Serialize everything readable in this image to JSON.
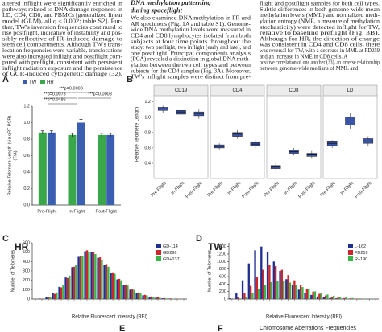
{
  "text": {
    "column_1": [
      "altered inflight were significantly enriched in",
      "pathways related to DNA damage responses in",
      "LD, CD4, CD8, and PBMCs [generalized linear",
      "model (GLM), all q ≤ 0.002; table S2]. Fur-",
      "ther, TW's inversion frequencies continued to",
      "rise postflight, indicative of instability and pos-",
      "sibly reflective of IR-induced damage to",
      "stem cell compartments. Although TW's trans-",
      "location frequencies were variable, translocations",
      "were also increased inflight and postflight com-",
      "pared with preflight, consistent with persistent",
      "inflight radiation exposure and the persistence",
      "of GCR-induced cytogenetic damage (32)."
    ],
    "column_2_heading": [
      "DNA methylation patterning",
      "during spaceflight"
    ],
    "column_2": [
      "We also examined DNA methylation in FR and",
      "AR specimens (Fig. 1A and table S1). Genome-",
      "wide DNA methylation levels were measured in",
      "CD4 and CD8 lymphocytes isolated from both",
      "subjects at four time points throughout the",
      "study: two preflight, two inflight (early and late), and",
      "one postflight. Principal components analysis",
      "(PCA) revealed a distinction in global DNA meth-",
      "ylation between the two cell types and between",
      "subjects for the CD4 samples (Fig. 3A). Moreover,",
      "TW's inflight samples were distinct from pre-"
    ],
    "column_3": [
      "flight and postflight samples for both cell types.",
      "Subtle differences in both genome-wide mean",
      "methylation levels (MML) and normalized meth-",
      "ylation entropy (NME, a measure of methylation",
      "stochasticity) were detected inflight for TW,",
      "relative to baseline preflight (Fig. 3B).",
      "Although for HR, the direction of change",
      "was consistent in CD4 and CD8 cells, there",
      "was reversal for TW, with a decrease in MML at FD259",
      "and an increase in NME in CD8 cells. A",
      "positive correlation of one another (33), an inverse relationship",
      "between genome-wide medians of MML and"
    ]
  },
  "chart_data": [
    {
      "panel": "A",
      "type": "bar",
      "ylabel": [
        "Relative Telomere Length (via qRT-PCR)",
        "(T/A)"
      ],
      "categories": [
        "Pre-Flight",
        "In-Flight",
        "Post-Flight"
      ],
      "series": [
        {
          "name": "TW",
          "color": "#3b5fb0",
          "values": [
            0.88,
            1.0,
            0.85
          ],
          "errors": [
            0.02,
            0.04,
            0.02
          ]
        },
        {
          "name": "HR",
          "color": "#3aa84a",
          "values": [
            0.88,
            0.85,
            0.85
          ],
          "errors": [
            0.02,
            0.02,
            0.02
          ]
        }
      ],
      "annotations": [
        "***p=0.0003",
        "**p=0.0073",
        "**p=0.0486",
        "***p=0.0003"
      ],
      "ylim": [
        0,
        1.2
      ],
      "yticks": [
        {
          "value": 0,
          "label": "0.0"
        },
        0.2,
        0.4,
        0.6,
        0.8,
        {
          "value": 1,
          "label": "1.0"
        },
        1.2
      ]
    },
    {
      "panel": "B",
      "type": "box",
      "ylabel": "Relative Telomere Length",
      "color": "#3a55a8",
      "categories": [
        "Pre-Flight",
        "In-Flight",
        "Post-Flight"
      ],
      "ylim": [
        0.2,
        1.25
      ],
      "yticks": [
        0.4,
        0.6,
        0.8,
        {
          "value": 1,
          "label": "1.0"
        },
        1.2
      ],
      "facets": [
        {
          "title": "CD19",
          "boxes": [
            [
              1.06,
              1.09,
              1.11,
              1.13,
              1.15
            ],
            [
              1.0,
              1.04,
              1.07,
              1.09,
              1.12
            ],
            [
              0.98,
              1.02,
              1.05,
              1.07,
              1.1
            ]
          ]
        },
        {
          "title": "CD4",
          "boxes": [
            [
              0.58,
              0.6,
              0.62,
              0.64,
              0.66
            ],
            [
              0.72,
              0.75,
              0.78,
              0.8,
              0.83
            ],
            [
              0.6,
              0.63,
              0.65,
              0.67,
              0.7
            ]
          ]
        },
        {
          "title": "CD8",
          "boxes": [
            [
              0.3,
              0.33,
              0.35,
              0.37,
              0.4
            ],
            [
              0.5,
              0.53,
              0.55,
              0.57,
              0.6
            ],
            [
              0.46,
              0.49,
              0.51,
              0.53,
              0.56
            ]
          ]
        },
        {
          "title": "LD",
          "boxes": [
            [
              0.6,
              0.63,
              0.66,
              0.68,
              0.7
            ],
            [
              0.85,
              0.9,
              0.95,
              1.0,
              1.05
            ],
            [
              0.62,
              0.66,
              0.69,
              0.72,
              0.75
            ]
          ]
        }
      ]
    },
    {
      "panel": "C",
      "type": "grouped-bar",
      "title": "HR",
      "xlabel": "Relative Fluorescent Intensity (RFI)",
      "ylabel": "Number of Telomeres",
      "categories": [
        null,
        null,
        null,
        null,
        null,
        null,
        null,
        null,
        null,
        null,
        null,
        null,
        null,
        null,
        null,
        null,
        null,
        null,
        null,
        null,
        null,
        null,
        null,
        null
      ],
      "series": [
        {
          "name": "GD-114",
          "color": "#1f2f8f",
          "values": [
            0,
            5,
            20,
            60,
            130,
            230,
            340,
            450,
            510,
            500,
            440,
            360,
            280,
            210,
            150,
            100,
            65,
            40,
            25,
            15,
            8,
            5,
            3,
            1
          ]
        },
        {
          "name": "GD296",
          "color": "#d0262b",
          "values": [
            0,
            4,
            18,
            55,
            125,
            225,
            345,
            460,
            520,
            505,
            445,
            365,
            285,
            215,
            155,
            105,
            70,
            45,
            28,
            17,
            10,
            6,
            3,
            1
          ]
        },
        {
          "name": "GD+137",
          "color": "#3bb54a",
          "values": [
            0,
            6,
            25,
            70,
            145,
            250,
            360,
            460,
            500,
            480,
            420,
            345,
            270,
            200,
            145,
            98,
            62,
            38,
            22,
            13,
            7,
            4,
            2,
            1
          ]
        }
      ],
      "ylim": [
        0,
        600
      ],
      "yticks": [
        0,
        100,
        200,
        300,
        400,
        500,
        600
      ]
    },
    {
      "panel": "D",
      "type": "grouped-bar",
      "title": "TW",
      "xlabel": "Relative Fluorescent Intensity (RFI)",
      "ylabel": "Number of Telomeres",
      "categories": [
        null,
        null,
        null,
        null,
        null,
        null,
        null,
        null,
        null,
        null,
        null,
        null,
        null,
        null,
        null,
        null,
        null,
        null,
        null,
        null,
        null,
        null,
        null,
        null
      ],
      "series": [
        {
          "name": "L-162",
          "color": "#1f2f8f",
          "values": [
            20,
            150,
            500,
            950,
            1300,
            1400,
            1250,
            1000,
            750,
            530,
            370,
            250,
            170,
            110,
            70,
            45,
            28,
            18,
            11,
            7,
            4,
            2,
            1,
            0
          ]
        },
        {
          "name": "FD259",
          "color": "#d0262b",
          "values": [
            5,
            40,
            150,
            350,
            580,
            780,
            900,
            880,
            780,
            640,
            500,
            380,
            280,
            200,
            140,
            95,
            62,
            40,
            26,
            16,
            10,
            6,
            3,
            1
          ]
        },
        {
          "name": "R+190",
          "color": "#3bb54a",
          "values": [
            2,
            15,
            60,
            150,
            260,
            370,
            450,
            490,
            480,
            440,
            380,
            320,
            260,
            205,
            160,
            120,
            88,
            62,
            42,
            28,
            18,
            11,
            6,
            3
          ]
        }
      ],
      "ylim": [
        0,
        1500
      ],
      "yticks": [
        0,
        200,
        400,
        600,
        800,
        1000,
        1200,
        1400
      ]
    }
  ],
  "footer": {
    "panel_e": "E",
    "panel_f": "F",
    "f_title": "Chromosome Aberrations Frequencies"
  }
}
